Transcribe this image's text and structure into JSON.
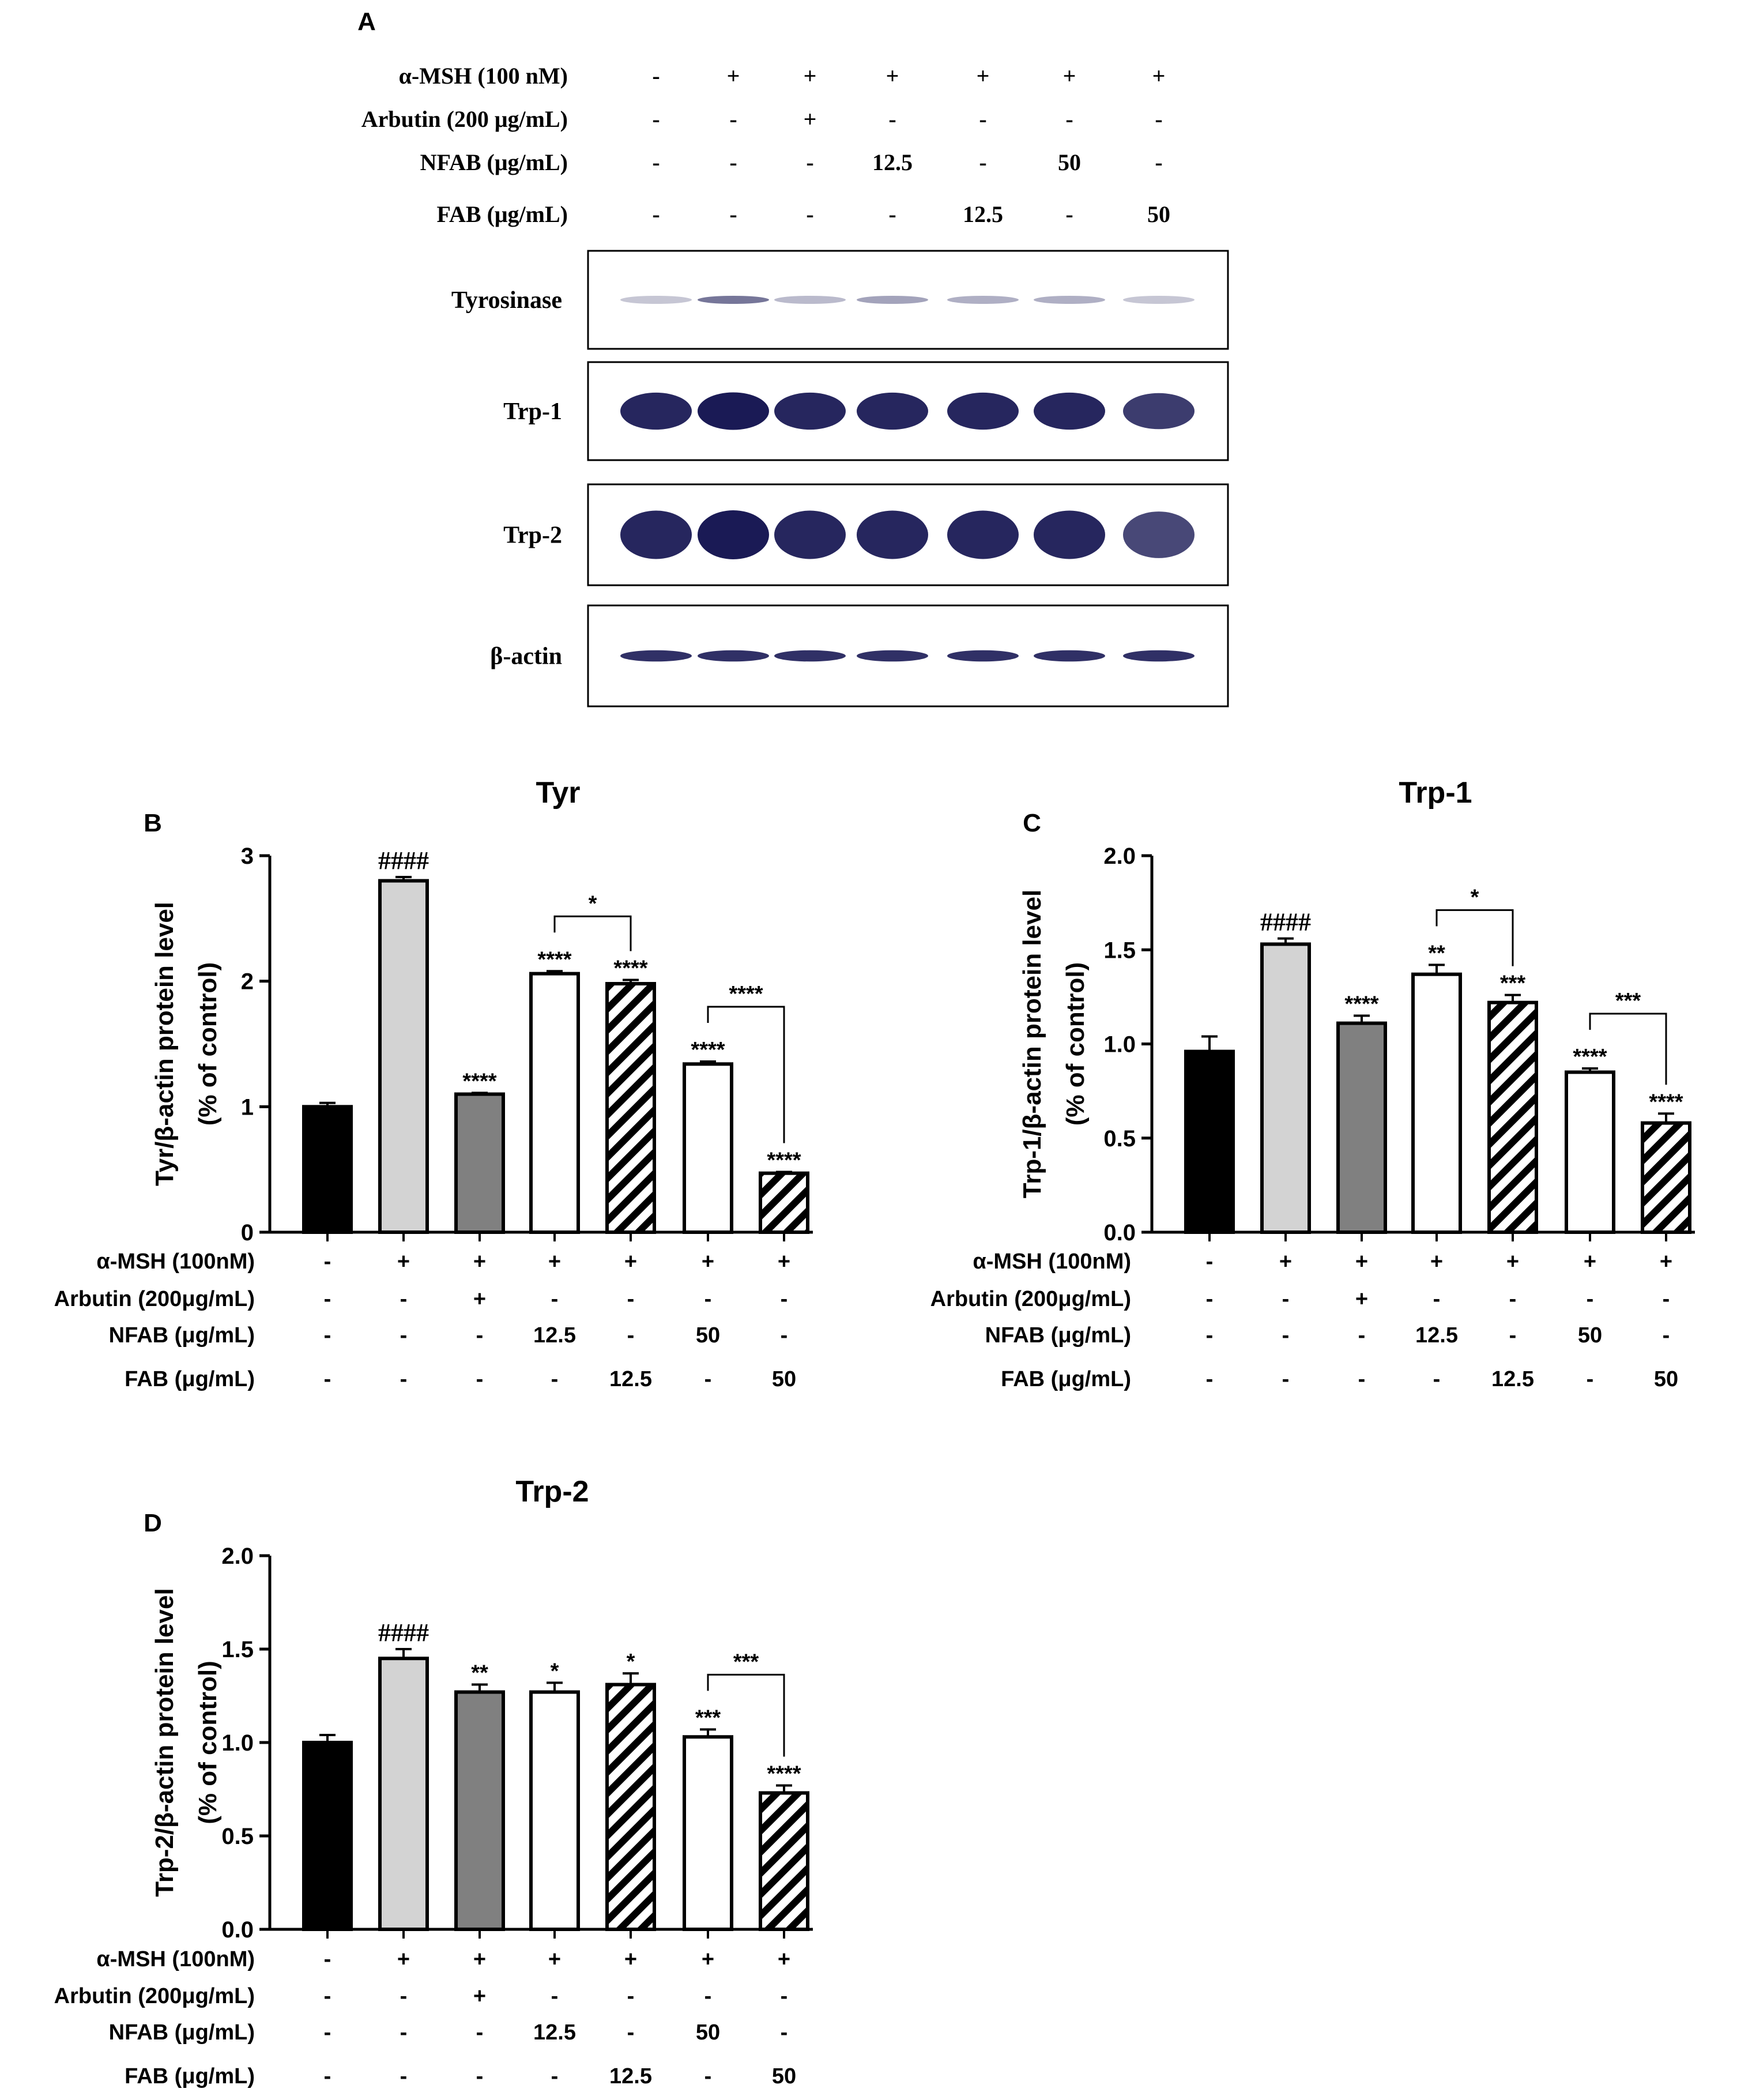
{
  "figure": {
    "panel_a_letter": "A",
    "colors": {
      "ink": "#000000",
      "blot_band": "#1a1a55",
      "control_fill": "#000000",
      "msh_fill": "#d3d3d3",
      "arbutin_fill": "#808080",
      "nfab_fill": "#ffffff",
      "fab_fill": "hatched"
    }
  },
  "blot": {
    "treatments": [
      {
        "label": "α-MSH  (100 nM)",
        "values": [
          "-",
          "+",
          "+",
          "+",
          "+",
          "+",
          "+"
        ]
      },
      {
        "label": "Arbutin  (200 μg/mL)",
        "values": [
          "-",
          "-",
          "+",
          "-",
          "-",
          "-",
          "-"
        ]
      },
      {
        "label": "NFAB  (μg/mL)",
        "values": [
          "-",
          "-",
          "-",
          "12.5",
          "-",
          "50",
          "-"
        ]
      },
      {
        "label": "FAB  (μg/mL)",
        "values": [
          "-",
          "-",
          "-",
          "-",
          "12.5",
          "-",
          "50"
        ]
      }
    ],
    "rows": [
      {
        "label": "Tyrosinase",
        "intensity": [
          0.25,
          0.6,
          0.3,
          0.4,
          0.35,
          0.35,
          0.25
        ]
      },
      {
        "label": "Trp-1",
        "intensity": [
          0.95,
          1.0,
          0.95,
          0.95,
          0.95,
          0.95,
          0.85
        ]
      },
      {
        "label": "Trp-2",
        "intensity": [
          0.95,
          1.0,
          0.95,
          0.95,
          0.95,
          0.95,
          0.8
        ]
      },
      {
        "label": "β-actin",
        "intensity": [
          0.9,
          0.9,
          0.9,
          0.9,
          0.9,
          0.9,
          0.9
        ]
      }
    ]
  },
  "chart_data": [
    {
      "type": "bar",
      "panel": "B",
      "title": "Tyr",
      "ylabel": "Tyr/β-actin protein level",
      "ylabel2": "(% of control)",
      "ylim": [
        0,
        3
      ],
      "yticks": [
        "0",
        "1",
        "2",
        "3"
      ],
      "yticks_values": [
        0,
        1,
        2,
        3
      ],
      "values": [
        1.0,
        2.8,
        1.1,
        2.06,
        1.98,
        1.34,
        0.47
      ],
      "errors": [
        0.03,
        0.03,
        0.01,
        0.02,
        0.03,
        0.02,
        0.01
      ],
      "annotations": [
        "",
        "####",
        "****",
        "****",
        "****",
        "****",
        "****"
      ],
      "brackets": [
        {
          "from": 3,
          "to": 4,
          "label": "*"
        },
        {
          "from": 5,
          "to": 6,
          "label": "****"
        }
      ],
      "treatments": [
        {
          "label": "α-MSH (100nM)",
          "values": [
            "-",
            "+",
            "+",
            "+",
            "+",
            "+",
            "+"
          ]
        },
        {
          "label": "Arbutin (200μg/mL)",
          "values": [
            "-",
            "-",
            "+",
            "-",
            "-",
            "-",
            "-"
          ]
        },
        {
          "label": "NFAB (μg/mL)",
          "values": [
            "-",
            "-",
            "-",
            "12.5",
            "-",
            "50",
            "-"
          ]
        },
        {
          "label": "FAB (μg/mL)",
          "values": [
            "-",
            "-",
            "-",
            "-",
            "12.5",
            "-",
            "50"
          ]
        }
      ]
    },
    {
      "type": "bar",
      "panel": "C",
      "title": "Trp-1",
      "ylabel": "Trp-1/β-actin protein level",
      "ylabel2": "(% of control)",
      "ylim": [
        0,
        2
      ],
      "yticks": [
        "0.0",
        "0.5",
        "1.0",
        "1.5",
        "2.0"
      ],
      "yticks_values": [
        0,
        0.5,
        1,
        1.5,
        2
      ],
      "values": [
        0.96,
        1.53,
        1.11,
        1.37,
        1.22,
        0.85,
        0.58
      ],
      "errors": [
        0.08,
        0.03,
        0.04,
        0.05,
        0.04,
        0.02,
        0.05
      ],
      "annotations": [
        "",
        "####",
        "****",
        "**",
        "***",
        "****",
        "****"
      ],
      "brackets": [
        {
          "from": 3,
          "to": 4,
          "label": "*"
        },
        {
          "from": 5,
          "to": 6,
          "label": "***"
        }
      ],
      "treatments": [
        {
          "label": "α-MSH (100nM)",
          "values": [
            "-",
            "+",
            "+",
            "+",
            "+",
            "+",
            "+"
          ]
        },
        {
          "label": "Arbutin (200μg/mL)",
          "values": [
            "-",
            "-",
            "+",
            "-",
            "-",
            "-",
            "-"
          ]
        },
        {
          "label": "NFAB (μg/mL)",
          "values": [
            "-",
            "-",
            "-",
            "12.5",
            "-",
            "50",
            "-"
          ]
        },
        {
          "label": "FAB (μg/mL)",
          "values": [
            "-",
            "-",
            "-",
            "-",
            "12.5",
            "-",
            "50"
          ]
        }
      ]
    },
    {
      "type": "bar",
      "panel": "D",
      "title": "Trp-2",
      "ylabel": "Trp-2/β-actin protein level",
      "ylabel2": "(% of control)",
      "ylim": [
        0,
        2
      ],
      "yticks": [
        "0.0",
        "0.5",
        "1.0",
        "1.5",
        "2.0"
      ],
      "yticks_values": [
        0,
        0.5,
        1,
        1.5,
        2
      ],
      "values": [
        1.0,
        1.45,
        1.27,
        1.27,
        1.31,
        1.03,
        0.73
      ],
      "errors": [
        0.04,
        0.05,
        0.04,
        0.05,
        0.06,
        0.04,
        0.04
      ],
      "annotations": [
        "",
        "####",
        "**",
        "*",
        "*",
        "***",
        "****"
      ],
      "brackets": [
        {
          "from": 5,
          "to": 6,
          "label": "***"
        }
      ],
      "treatments": [
        {
          "label": "α-MSH (100nM)",
          "values": [
            "-",
            "+",
            "+",
            "+",
            "+",
            "+",
            "+"
          ]
        },
        {
          "label": "Arbutin (200μg/mL)",
          "values": [
            "-",
            "-",
            "+",
            "-",
            "-",
            "-",
            "-"
          ]
        },
        {
          "label": "NFAB (μg/mL)",
          "values": [
            "-",
            "-",
            "-",
            "12.5",
            "-",
            "50",
            "-"
          ]
        },
        {
          "label": "FAB (μg/mL)",
          "values": [
            "-",
            "-",
            "-",
            "-",
            "12.5",
            "-",
            "50"
          ]
        }
      ]
    }
  ]
}
